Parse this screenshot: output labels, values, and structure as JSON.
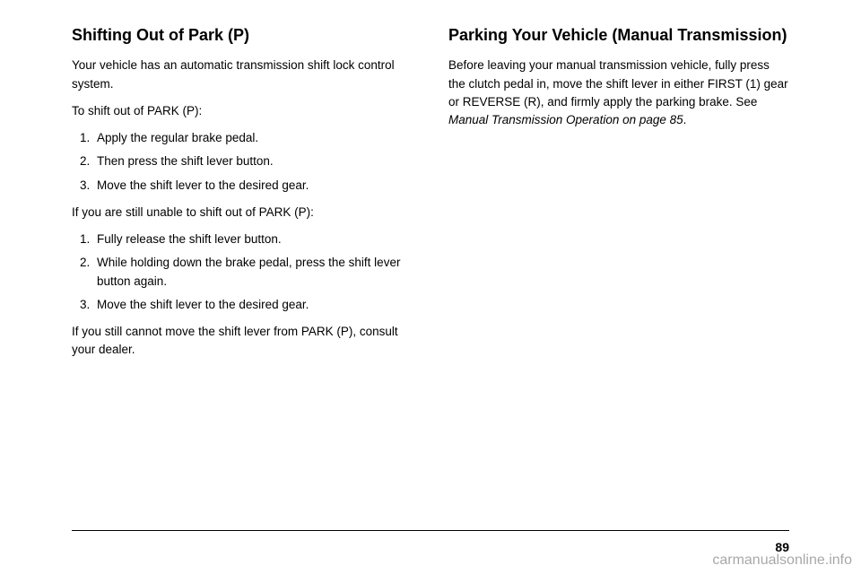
{
  "left": {
    "heading": "Shifting Out of Park (P)",
    "p1": "Your vehicle has an automatic transmission shift lock control system.",
    "p2": "To shift out of PARK (P):",
    "list1": [
      "Apply the regular brake pedal.",
      "Then press the shift lever button.",
      "Move the shift lever to the desired gear."
    ],
    "p3": "If you are still unable to shift out of PARK (P):",
    "list2": [
      "Fully release the shift lever button.",
      "While holding down the brake pedal, press the shift lever button again.",
      "Move the shift lever to the desired gear."
    ],
    "p4": "If you still cannot move the shift lever from PARK (P), consult your dealer."
  },
  "right": {
    "heading": "Parking Your Vehicle (Manual Transmission)",
    "p1_a": "Before leaving your manual transmission vehicle, fully press the clutch pedal in, move the shift lever in either FIRST (1) gear or REVERSE (R), and firmly apply the parking brake. See ",
    "p1_b": "Manual Transmission Operation on page 85",
    "p1_c": "."
  },
  "page_number": "89",
  "watermark": "carmanualsonline.info"
}
